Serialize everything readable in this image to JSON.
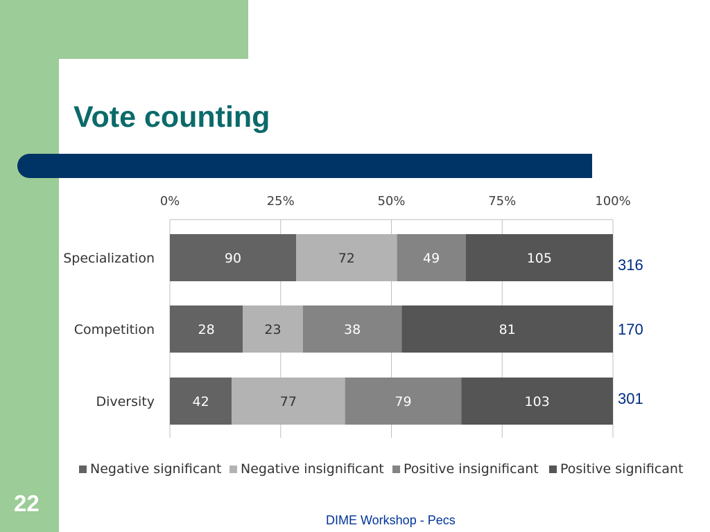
{
  "slide": {
    "title": "Vote counting",
    "number": "22",
    "footer": "DIME Workshop - Pecs"
  },
  "chart_data": {
    "type": "bar",
    "orientation": "horizontal",
    "stacked": "percent",
    "title": "",
    "xlabel": "",
    "ylabel": "",
    "xlim": [
      0,
      100
    ],
    "x_ticks": [
      "0%",
      "25%",
      "50%",
      "75%",
      "100%"
    ],
    "categories": [
      "Specialization",
      "Competition",
      "Diversity"
    ],
    "series": [
      {
        "name": "Negative significant",
        "color": "#636363",
        "values": [
          90,
          28,
          42
        ]
      },
      {
        "name": "Negative insignificant",
        "color": "#b3b3b3",
        "values": [
          72,
          23,
          77
        ]
      },
      {
        "name": "Positive insignificant",
        "color": "#848484",
        "values": [
          49,
          38,
          79
        ]
      },
      {
        "name": "Positive significant",
        "color": "#555555",
        "values": [
          105,
          81,
          103
        ]
      }
    ],
    "totals": [
      "316",
      "170",
      "301"
    ],
    "grid": true,
    "legend": "bottom"
  }
}
